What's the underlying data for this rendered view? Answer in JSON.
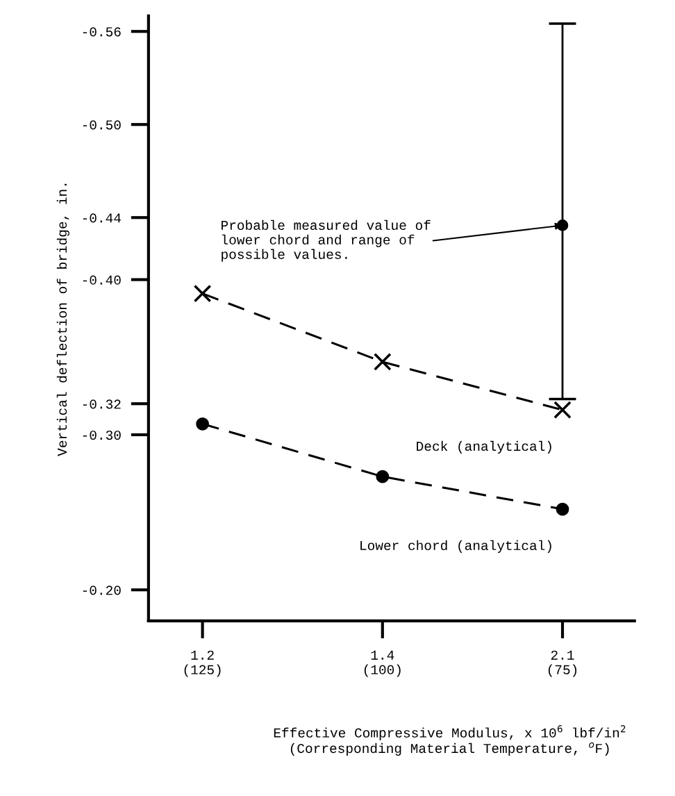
{
  "chart_data": {
    "type": "line",
    "categories": [
      "1.2\n(125)",
      "1.4\n(100)",
      "2.1\n(75)"
    ],
    "xlabel": "Effective Compressive Modulus, x 10$^{6}$ lbf/in$^{2}$\n(Corresponding Material Temperature, $^{o}$F)",
    "ylabel": "Vertical deflection of bridge, in.",
    "series": [
      {
        "name": "Deck (analytical)",
        "color": "#000000",
        "marker": "cross",
        "line_style": "dashed",
        "values": [
          -0.391,
          -0.347,
          -0.316
        ]
      },
      {
        "name": "Lower chord (analytical)",
        "color": "#000000",
        "marker": "circle",
        "line_style": "dashed",
        "values": [
          -0.307,
          -0.273,
          -0.252
        ]
      },
      {
        "type": "scatter",
        "color": "#000000",
        "marker": "circle",
        "values": [
          null,
          null,
          -0.435
        ],
        "errors": [
          null,
          null,
          [
            -0.565,
            -0.323
          ]
        ]
      }
    ],
    "annotations": [
      {
        "text": "Probable measured value of\nlower chord and range of\npossible values.",
        "x": "2.1\n(75)",
        "y": -0.435
      }
    ],
    "ylim": [
      -0.18,
      -0.57
    ],
    "yticks": [
      -0.56,
      {
        "value": -0.5,
        "label": "-0.50"
      },
      -0.44,
      {
        "value": -0.4,
        "label": "-0.40"
      },
      -0.32,
      {
        "value": -0.3,
        "label": "-0.30"
      },
      {
        "value": -0.2,
        "label": "-0.20"
      }
    ],
    "grid": false,
    "legend": false
  }
}
